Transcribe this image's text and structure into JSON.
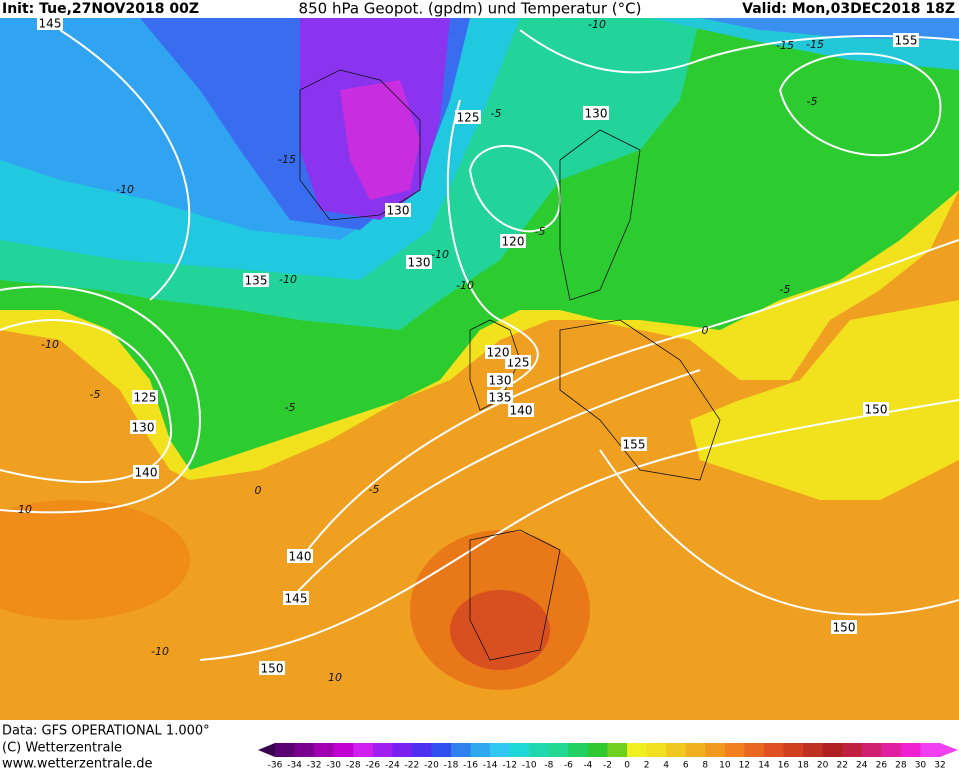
{
  "header": {
    "init": "Init: Tue,27NOV2018 00Z",
    "title": "850 hPa Geopot. (gpdm) und Temperatur (°C)",
    "valid": "Valid: Mon,03DEC2018 18Z"
  },
  "map": {
    "geopotential_labels": [
      "145",
      "155",
      "125",
      "130",
      "130",
      "120",
      "130",
      "135",
      "125",
      "130",
      "140",
      "120",
      "125",
      "130",
      "135",
      "140",
      "155",
      "150",
      "150",
      "140",
      "145",
      "150"
    ],
    "temperature_labels": [
      "-10",
      "-15",
      "-15",
      "-10",
      "-5",
      "-15",
      "-10",
      "-5",
      "-10",
      "-5",
      "-5",
      "-5",
      "0",
      "-5",
      "0",
      "-5",
      "-10",
      "10",
      "-10",
      "10",
      "-10"
    ]
  },
  "footer": {
    "source": "Data: GFS OPERATIONAL 1.000°",
    "copyright": "(C) Wetterzentrale",
    "url": "www.wetterzentrale.de"
  },
  "colorbar": {
    "ticks": [
      -36,
      -34,
      -32,
      -30,
      -28,
      -26,
      -24,
      -22,
      -20,
      -18,
      -16,
      -14,
      -12,
      -10,
      -8,
      -6,
      -4,
      -2,
      0,
      2,
      4,
      6,
      8,
      10,
      12,
      14,
      16,
      18,
      20,
      22,
      24,
      26,
      28,
      30,
      32
    ]
  }
}
